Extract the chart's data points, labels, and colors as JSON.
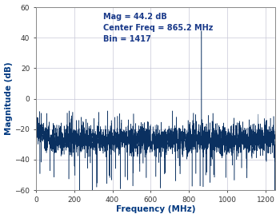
{
  "xlabel": "Frequency (MHz)",
  "ylabel": "Magnitude (dB)",
  "xlim": [
    0,
    1250
  ],
  "ylim": [
    -60,
    60
  ],
  "xticks": [
    0,
    200,
    400,
    600,
    800,
    1000,
    1200
  ],
  "yticks": [
    -60,
    -40,
    -20,
    0,
    20,
    40,
    60
  ],
  "annotation_line1": "Mag = 44.2 dB",
  "annotation_line2": "Center Freq = 865.2 MHz",
  "annotation_line3": "Bin = 1417",
  "spike_freq": 865.2,
  "spike_mag": 44.5,
  "noise_mean": -27.0,
  "noise_std": 4.5,
  "n_points": 3000,
  "freq_max": 1250,
  "line_color": "#0a3060",
  "annotation_color": "#1a3a8a",
  "bg_color": "#ffffff",
  "grid_color": "#c8c8d8",
  "seed": 77,
  "xlabel_color": "#003880",
  "ylabel_color": "#003880"
}
